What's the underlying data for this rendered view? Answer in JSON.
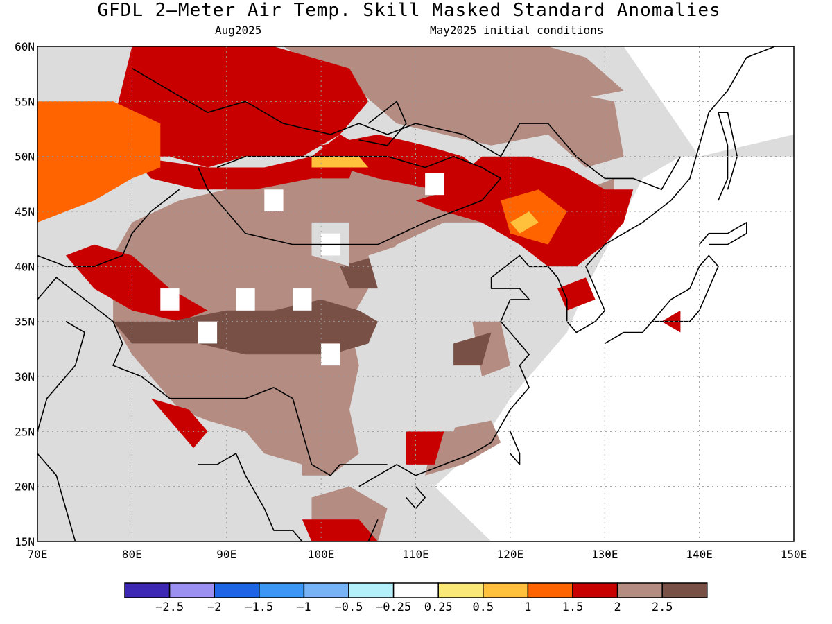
{
  "title": "GFDL 2—Meter Air Temp. Skill Masked Standard Anomalies",
  "subtitle_left": "Aug2025",
  "subtitle_right": "May2025 initial conditions",
  "lat_labels": [
    "60N",
    "55N",
    "50N",
    "45N",
    "40N",
    "35N",
    "30N",
    "25N",
    "20N",
    "15N"
  ],
  "lon_labels": [
    "70E",
    "80E",
    "90E",
    "100E",
    "110E",
    "120E",
    "130E",
    "140E",
    "150E"
  ],
  "colorbar": {
    "colors": [
      "#3c28b4",
      "#9b8ff0",
      "#1e64e6",
      "#3c96f5",
      "#78b4f5",
      "#b4f0fa",
      "#ffffff",
      "#fae878",
      "#ffc03c",
      "#ff6400",
      "#c80000",
      "#b48c82",
      "#785046"
    ],
    "labels": [
      "−2.5",
      "−2",
      "−1.5",
      "−1",
      "−0.5",
      "−0.25",
      "0.25",
      "0.5",
      "1",
      "1.5",
      "2",
      "2.5"
    ]
  },
  "colors": {
    "masked": "#dcdcdc",
    "coast": "#000000",
    "grid": "#999999"
  }
}
